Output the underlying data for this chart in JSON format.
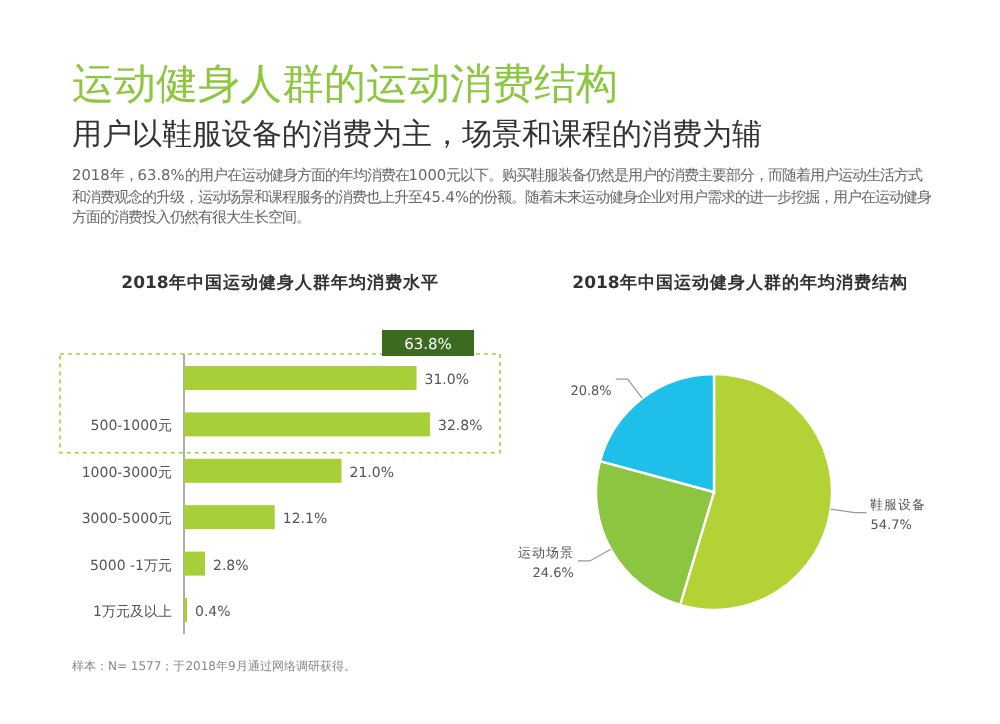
{
  "chart_data": [
    {
      "type": "other",
      "title": "运动健身人群的运动消费结构",
      "subtitle": "用户以鞋服设备的消费为主，场景和课程的消费为辅",
      "annotations": [
        "2018年，63.8%的用户在运动健身方面的年均消费在1000元以下。购买鞋服装备仍然是用户的消费主要部分，而随着用户运动生活方式和消费观念的升级，运动场景和课程服务的消费也上升至45.4%的份额。随着未来运动健身企业对用户需求的进一步挖掘，用户在运动健身方面的消费投入仍然有很大生长空间。",
        "样本：N= 1577；于2018年9月通过网络调研获得。"
      ]
    },
    {
      "type": "bar",
      "orientation": "horizontal",
      "title": "2018年中国运动健身人群年均消费水平",
      "categories": [
        null,
        "500-1000元",
        "1000-3000元",
        "3000-5000元",
        "5000 -1万元",
        "1万元及以上"
      ],
      "values": [
        31.0,
        32.8,
        21.0,
        12.1,
        2.8,
        0.4
      ],
      "value_labels": [
        "31.0%",
        "32.8%",
        "21.0%",
        "12.1%",
        "2.8%",
        "0.4%"
      ],
      "color": "#a6cf38",
      "annotations": [
        "63.8%"
      ]
    },
    {
      "type": "pie",
      "title": "2018年中国运动健身人群的年均消费结构",
      "categories": [
        "鞋服设备",
        "运动场景",
        null
      ],
      "values": [
        54.7,
        24.6,
        20.8
      ],
      "colors": [
        "#b3d235",
        "#8cc540",
        "#1ec0ea"
      ],
      "value_labels": [
        "54.7%",
        "24.6%",
        "20.8%"
      ]
    }
  ]
}
